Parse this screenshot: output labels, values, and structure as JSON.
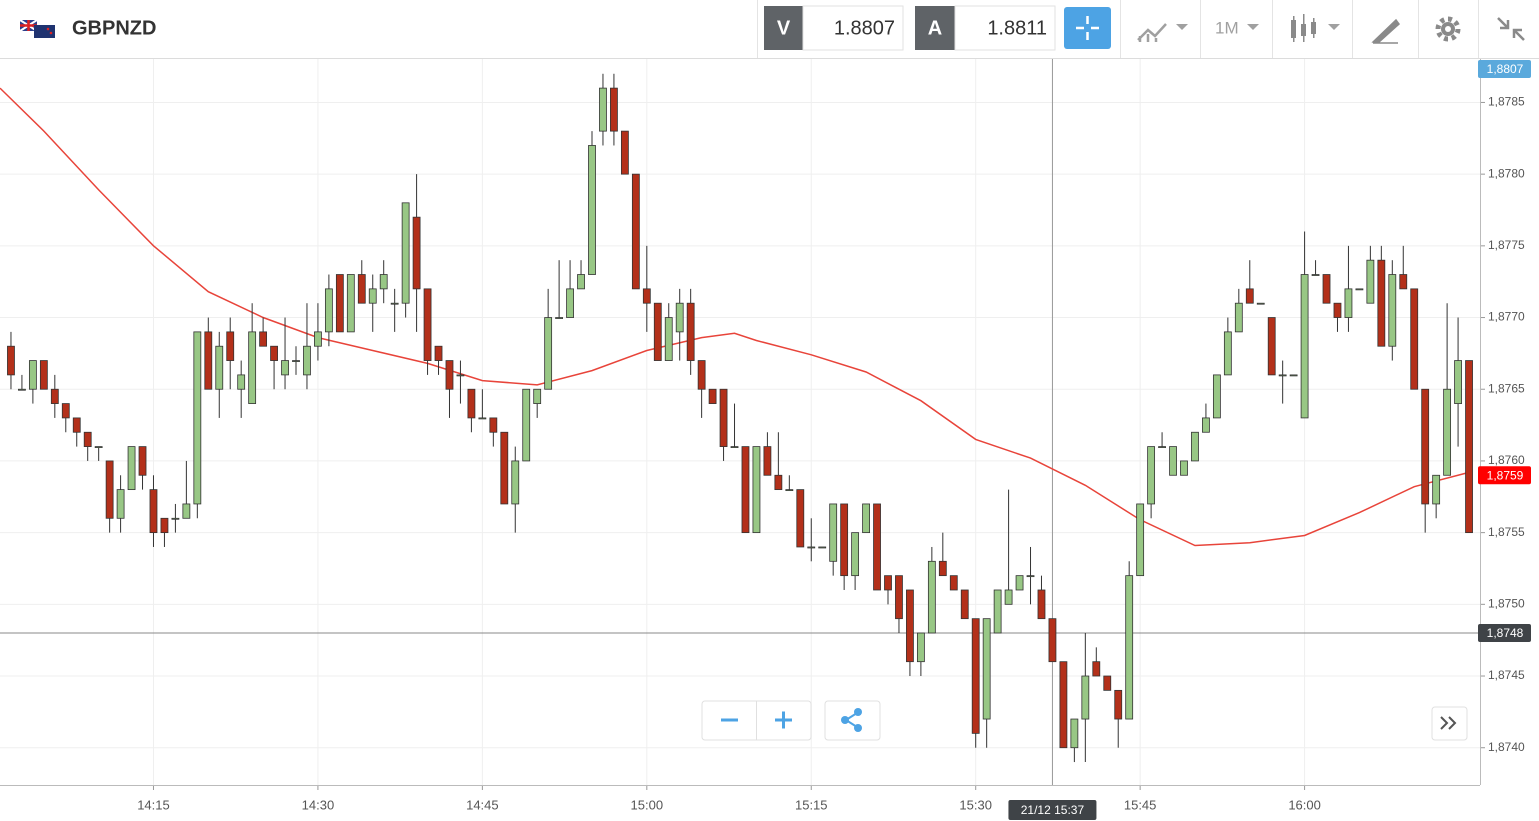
{
  "toolbar": {
    "symbol": "GBPNZD",
    "bid_label": "V",
    "bid": 1.8807,
    "ask_label": "A",
    "ask": 1.8811,
    "timeframe": "1M"
  },
  "chart_data": {
    "type": "candlestick",
    "x": [
      "14:02",
      "14:03",
      "14:04",
      "14:05",
      "14:06",
      "14:07",
      "14:08",
      "14:09",
      "14:10",
      "14:11",
      "14:12",
      "14:13",
      "14:14",
      "14:15",
      "14:16",
      "14:17",
      "14:18",
      "14:19",
      "14:20",
      "14:21",
      "14:22",
      "14:23",
      "14:24",
      "14:25",
      "14:26",
      "14:27",
      "14:28",
      "14:29",
      "14:30",
      "14:31",
      "14:32",
      "14:33",
      "14:34",
      "14:35",
      "14:36",
      "14:37",
      "14:38",
      "14:39",
      "14:40",
      "14:41",
      "14:42",
      "14:43",
      "14:44",
      "14:45",
      "14:46",
      "14:47",
      "14:48",
      "14:49",
      "14:50",
      "14:51",
      "14:52",
      "14:53",
      "14:54",
      "14:55",
      "14:56",
      "14:57",
      "14:58",
      "14:59",
      "15:00",
      "15:01",
      "15:02",
      "15:03",
      "15:04",
      "15:05",
      "15:06",
      "15:07",
      "15:08",
      "15:09",
      "15:10",
      "15:11",
      "15:12",
      "15:13",
      "15:14",
      "15:15",
      "15:16",
      "15:17",
      "15:18",
      "15:19",
      "15:20",
      "15:21",
      "15:22",
      "15:23",
      "15:24",
      "15:25",
      "15:26",
      "15:27",
      "15:28",
      "15:29",
      "15:30",
      "15:31",
      "15:32",
      "15:33",
      "15:34",
      "15:35",
      "15:36",
      "15:37",
      "15:38",
      "15:39",
      "15:40",
      "15:41",
      "15:42",
      "15:43",
      "15:44",
      "15:45",
      "15:46",
      "15:47",
      "15:48",
      "15:49",
      "15:50",
      "15:51",
      "15:52",
      "15:53",
      "15:54",
      "15:55",
      "15:56",
      "15:57",
      "15:58",
      "15:59",
      "16:00",
      "16:01",
      "16:02",
      "16:03",
      "16:04",
      "16:05",
      "16:06",
      "16:07",
      "16:08",
      "16:09",
      "16:10",
      "16:11",
      "16:12",
      "16:13",
      "16:14",
      "16:15"
    ],
    "open": [
      1.8768,
      1.8765,
      1.8765,
      1.8767,
      1.8765,
      1.8764,
      1.8763,
      1.8762,
      1.8761,
      1.876,
      1.8756,
      1.8758,
      1.8761,
      1.8758,
      1.8756,
      1.8756,
      1.8756,
      1.8757,
      1.8769,
      1.8765,
      1.8769,
      1.8765,
      1.8764,
      1.8769,
      1.8768,
      1.8766,
      1.8767,
      1.8766,
      1.8768,
      1.8769,
      1.8773,
      1.8769,
      1.8773,
      1.8771,
      1.8772,
      1.8771,
      1.8771,
      1.8777,
      1.8772,
      1.8768,
      1.8767,
      1.8766,
      1.8765,
      1.8763,
      1.8763,
      1.8762,
      1.8757,
      1.876,
      1.8764,
      1.8765,
      1.877,
      1.877,
      1.8772,
      1.8773,
      1.8783,
      1.8786,
      1.8783,
      1.878,
      1.8772,
      1.8771,
      1.8767,
      1.8769,
      1.8771,
      1.8767,
      1.8765,
      1.8765,
      1.8761,
      1.8761,
      1.8755,
      1.8761,
      1.8759,
      1.8758,
      1.8758,
      1.8754,
      1.8754,
      1.8753,
      1.8757,
      1.8752,
      1.8755,
      1.8757,
      1.8752,
      1.8752,
      1.8751,
      1.8746,
      1.8748,
      1.8753,
      1.8752,
      1.8751,
      1.8749,
      1.8742,
      1.8748,
      1.875,
      1.8751,
      1.8752,
      1.8751,
      1.8749,
      1.8746,
      1.874,
      1.8742,
      1.8746,
      1.8745,
      1.8744,
      1.8742,
      1.8752,
      1.8757,
      1.8761,
      1.8759,
      1.8759,
      1.876,
      1.8762,
      1.8763,
      1.8766,
      1.8769,
      1.8772,
      1.8771,
      1.877,
      1.8766,
      1.8766,
      1.8763,
      1.8773,
      1.8773,
      1.8771,
      1.877,
      1.8772,
      1.8771,
      1.8774,
      1.8768,
      1.8773,
      1.8772,
      1.8765,
      1.8757,
      1.8759,
      1.8764,
      1.8767
    ],
    "high": [
      1.8769,
      1.8766,
      1.8767,
      1.8767,
      1.8766,
      1.8764,
      1.8763,
      1.8762,
      1.8761,
      1.876,
      1.8759,
      1.8761,
      1.8761,
      1.8759,
      1.8756,
      1.8757,
      1.876,
      1.8769,
      1.877,
      1.8769,
      1.877,
      1.8767,
      1.8771,
      1.877,
      1.8768,
      1.877,
      1.8768,
      1.8771,
      1.8771,
      1.8773,
      1.8773,
      1.8773,
      1.8774,
      1.8773,
      1.8774,
      1.8772,
      1.8778,
      1.878,
      1.8772,
      1.8768,
      1.8767,
      1.8767,
      1.8765,
      1.8765,
      1.8763,
      1.8762,
      1.8761,
      1.8765,
      1.8765,
      1.8772,
      1.8774,
      1.8774,
      1.8774,
      1.8783,
      1.8787,
      1.8787,
      1.8783,
      1.878,
      1.8775,
      1.8771,
      1.8771,
      1.8772,
      1.8772,
      1.8767,
      1.8765,
      1.8765,
      1.8764,
      1.8761,
      1.8761,
      1.8762,
      1.8762,
      1.8759,
      1.8758,
      1.8756,
      1.8754,
      1.8757,
      1.8757,
      1.8755,
      1.8757,
      1.8757,
      1.8752,
      1.8752,
      1.8751,
      1.8748,
      1.8754,
      1.8755,
      1.8752,
      1.8751,
      1.8749,
      1.8749,
      1.8751,
      1.8758,
      1.8752,
      1.8754,
      1.8752,
      1.8749,
      1.8746,
      1.8742,
      1.8748,
      1.8747,
      1.8745,
      1.8744,
      1.8753,
      1.8757,
      1.8761,
      1.8762,
      1.8761,
      1.876,
      1.8762,
      1.8764,
      1.8766,
      1.877,
      1.8772,
      1.8774,
      1.8771,
      1.877,
      1.8767,
      1.8766,
      1.8776,
      1.8774,
      1.8773,
      1.8771,
      1.8775,
      1.8772,
      1.8775,
      1.8775,
      1.8774,
      1.8775,
      1.8772,
      1.8765,
      1.8759,
      1.8771,
      1.877,
      1.8767
    ],
    "low": [
      1.8765,
      1.8765,
      1.8764,
      1.8765,
      1.8763,
      1.8762,
      1.8761,
      1.876,
      1.876,
      1.8755,
      1.8755,
      1.8758,
      1.8758,
      1.8754,
      1.8754,
      1.8755,
      1.8756,
      1.8756,
      1.8765,
      1.8763,
      1.8765,
      1.8763,
      1.8764,
      1.8768,
      1.8765,
      1.8765,
      1.8766,
      1.8765,
      1.8767,
      1.8768,
      1.8769,
      1.8769,
      1.8771,
      1.8769,
      1.8771,
      1.8769,
      1.877,
      1.8769,
      1.8766,
      1.8766,
      1.8763,
      1.8764,
      1.8762,
      1.8763,
      1.8761,
      1.8757,
      1.8755,
      1.876,
      1.8763,
      1.8765,
      1.877,
      1.877,
      1.8772,
      1.8773,
      1.8782,
      1.8782,
      1.878,
      1.8772,
      1.8769,
      1.8767,
      1.8767,
      1.8767,
      1.8766,
      1.8763,
      1.8764,
      1.876,
      1.8761,
      1.8755,
      1.8755,
      1.8759,
      1.8758,
      1.8758,
      1.8754,
      1.8753,
      1.8754,
      1.8752,
      1.8751,
      1.8751,
      1.8755,
      1.8751,
      1.875,
      1.8748,
      1.8745,
      1.8745,
      1.8748,
      1.8752,
      1.8751,
      1.8749,
      1.874,
      1.874,
      1.8748,
      1.875,
      1.8751,
      1.875,
      1.8749,
      1.8746,
      1.874,
      1.8739,
      1.8739,
      1.8745,
      1.8744,
      1.874,
      1.8742,
      1.8752,
      1.8756,
      1.8761,
      1.8759,
      1.8759,
      1.876,
      1.8762,
      1.8763,
      1.8766,
      1.8769,
      1.8771,
      1.8771,
      1.8766,
      1.8764,
      1.8766,
      1.8763,
      1.8773,
      1.8771,
      1.8769,
      1.8769,
      1.8772,
      1.8771,
      1.8768,
      1.8767,
      1.8772,
      1.8765,
      1.8755,
      1.8756,
      1.8759,
      1.8761,
      1.8755
    ],
    "close": [
      1.8766,
      1.8765,
      1.8767,
      1.8765,
      1.8764,
      1.8763,
      1.8762,
      1.8761,
      1.8761,
      1.8756,
      1.8758,
      1.8761,
      1.8759,
      1.8755,
      1.8755,
      1.8756,
      1.8757,
      1.8769,
      1.8765,
      1.8768,
      1.8767,
      1.8766,
      1.8769,
      1.8768,
      1.8767,
      1.8767,
      1.8767,
      1.8768,
      1.8769,
      1.8772,
      1.8769,
      1.8773,
      1.8771,
      1.8772,
      1.8773,
      1.8771,
      1.8778,
      1.8772,
      1.8767,
      1.8767,
      1.8765,
      1.8766,
      1.8763,
      1.8763,
      1.8762,
      1.8757,
      1.876,
      1.8765,
      1.8765,
      1.877,
      1.877,
      1.8772,
      1.8773,
      1.8782,
      1.8786,
      1.8783,
      1.878,
      1.8772,
      1.8771,
      1.8767,
      1.877,
      1.8771,
      1.8767,
      1.8765,
      1.8764,
      1.8761,
      1.8761,
      1.8755,
      1.8761,
      1.8759,
      1.8758,
      1.8758,
      1.8754,
      1.8754,
      1.8754,
      1.8757,
      1.8752,
      1.8755,
      1.8757,
      1.8751,
      1.8751,
      1.8749,
      1.8746,
      1.8748,
      1.8753,
      1.8752,
      1.8751,
      1.8749,
      1.8741,
      1.8749,
      1.8751,
      1.8751,
      1.8752,
      1.8752,
      1.8749,
      1.8746,
      1.874,
      1.8742,
      1.8745,
      1.8745,
      1.8744,
      1.8742,
      1.8752,
      1.8757,
      1.8761,
      1.8761,
      1.8761,
      1.876,
      1.8762,
      1.8763,
      1.8766,
      1.8769,
      1.8771,
      1.8771,
      1.8771,
      1.8766,
      1.8766,
      1.8766,
      1.8773,
      1.8773,
      1.8771,
      1.877,
      1.8772,
      1.8772,
      1.8774,
      1.8768,
      1.8773,
      1.8772,
      1.8765,
      1.8757,
      1.8759,
      1.8765,
      1.8767,
      1.8755
    ],
    "up_color": "#98c785",
    "down_color": "#b3301a",
    "xlim": [
      "14:01",
      "16:16"
    ],
    "xticks": [
      "14:15",
      "14:30",
      "14:45",
      "15:00",
      "15:15",
      "15:30",
      "15:45",
      "16:00"
    ],
    "ylim": [
      1.87374,
      1.87881
    ],
    "yticks": [
      {
        "value": 1.874,
        "label": "1,8740"
      },
      {
        "value": 1.8745,
        "label": "1,8745"
      },
      {
        "value": 1.875,
        "label": "1,8750"
      },
      {
        "value": 1.8755,
        "label": "1,8755"
      },
      {
        "value": 1.876,
        "label": "1,8760"
      },
      {
        "value": 1.8765,
        "label": "1,8765"
      },
      {
        "value": 1.877,
        "label": "1,8770"
      },
      {
        "value": 1.8775,
        "label": "1,8775"
      },
      {
        "value": 1.878,
        "label": "1,8780"
      },
      {
        "value": 1.8785,
        "label": "1,8785"
      }
    ],
    "grid": true,
    "ma": {
      "color": "#e8443a",
      "x": [
        "14:01",
        "14:05",
        "14:10",
        "14:15",
        "14:20",
        "14:25",
        "14:30",
        "14:35",
        "14:40",
        "14:45",
        "14:50",
        "14:55",
        "15:00",
        "15:05",
        "15:08",
        "15:10",
        "15:15",
        "15:20",
        "15:25",
        "15:30",
        "15:35",
        "15:40",
        "15:45",
        "15:50",
        "15:55",
        "16:00",
        "16:05",
        "16:10",
        "16:15"
      ],
      "values": [
        1.8786,
        1.8783,
        1.87789,
        1.8775,
        1.87718,
        1.877,
        1.87686,
        1.87677,
        1.87668,
        1.87656,
        1.87653,
        1.87663,
        1.87677,
        1.87686,
        1.87689,
        1.87684,
        1.87674,
        1.87662,
        1.87642,
        1.87615,
        1.87602,
        1.87583,
        1.87559,
        1.87541,
        1.87543,
        1.87548,
        1.87564,
        1.87582,
        1.87592
      ]
    },
    "price_labels": [
      {
        "value": 1.8807,
        "label": "1,8807",
        "color": "#5aa9dc"
      },
      {
        "value": 1.8759,
        "label": "1,8759",
        "color": "#ff0000"
      }
    ],
    "crosshair": {
      "x": "15:37",
      "x_label": "21/12 15:37",
      "y": {
        "value": 1.8748,
        "label": "1,8748"
      },
      "color": "#3f4347"
    }
  }
}
